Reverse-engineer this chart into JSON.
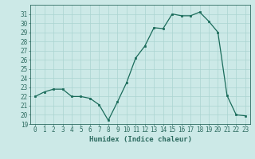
{
  "x": [
    0,
    1,
    2,
    3,
    4,
    5,
    6,
    7,
    8,
    9,
    10,
    11,
    12,
    13,
    14,
    15,
    16,
    17,
    18,
    19,
    20,
    21,
    22,
    23
  ],
  "y": [
    22,
    22.5,
    22.8,
    22.8,
    22,
    22,
    21.8,
    21.1,
    19.4,
    21.4,
    23.5,
    26.2,
    27.5,
    29.5,
    29.4,
    31.0,
    30.8,
    30.8,
    31.2,
    30.2,
    29.0,
    22.1,
    20.0,
    19.9
  ],
  "xlabel": "Humidex (Indice chaleur)",
  "ylim": [
    19,
    32
  ],
  "xlim": [
    -0.5,
    23.5
  ],
  "yticks": [
    19,
    20,
    21,
    22,
    23,
    24,
    25,
    26,
    27,
    28,
    29,
    30,
    31
  ],
  "xticks": [
    0,
    1,
    2,
    3,
    4,
    5,
    6,
    7,
    8,
    9,
    10,
    11,
    12,
    13,
    14,
    15,
    16,
    17,
    18,
    19,
    20,
    21,
    22,
    23
  ],
  "line_color": "#1a6b5a",
  "marker_color": "#1a6b5a",
  "bg_color": "#cce9e7",
  "grid_color": "#aad4d1",
  "axes_color": "#2d6b60",
  "label_fontsize": 6.5,
  "tick_fontsize": 5.5
}
